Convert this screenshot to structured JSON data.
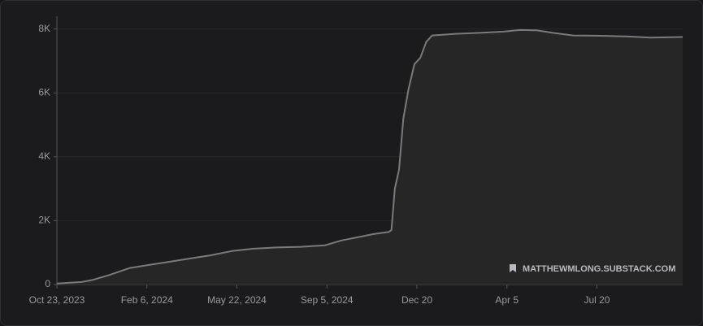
{
  "chart_data": {
    "type": "area",
    "x": [
      0,
      29,
      43,
      62,
      86,
      110,
      134,
      158,
      182,
      206,
      230,
      258,
      287,
      316,
      335,
      354,
      373,
      391,
      394,
      398,
      403,
      408,
      414,
      421,
      428,
      435,
      442,
      469,
      498,
      526,
      545,
      565,
      584,
      608,
      641,
      670,
      699,
      737
    ],
    "values": [
      30,
      80,
      150,
      300,
      520,
      620,
      720,
      820,
      920,
      1050,
      1120,
      1160,
      1180,
      1230,
      1380,
      1480,
      1580,
      1650,
      1700,
      3000,
      3600,
      5200,
      6100,
      6900,
      7100,
      7600,
      7800,
      7850,
      7880,
      7920,
      7970,
      7960,
      7880,
      7800,
      7790,
      7770,
      7730,
      7750
    ],
    "color": "#7a7a7a",
    "xlim": [
      0,
      737
    ],
    "xticks": [
      {
        "value": 0,
        "label": "Oct 23, 2023"
      },
      {
        "value": 106,
        "label": "Feb 6, 2024"
      },
      {
        "value": 212,
        "label": "May 22, 2024"
      },
      {
        "value": 318,
        "label": "Sep 5, 2024"
      },
      {
        "value": 424,
        "label": "Dec 20"
      },
      {
        "value": 530,
        "label": "Apr 5"
      },
      {
        "value": 636,
        "label": "Jul 20"
      }
    ],
    "ylim": [
      0,
      8400
    ],
    "yticks": [
      0,
      {
        "value": 2000,
        "label": "2K"
      },
      {
        "value": 4000,
        "label": "4K"
      },
      {
        "value": 6000,
        "label": "6K"
      },
      {
        "value": 8000,
        "label": "8K"
      }
    ],
    "grid": true,
    "watermark": "MATTHEWMLONG.SUBSTACK.COM"
  }
}
